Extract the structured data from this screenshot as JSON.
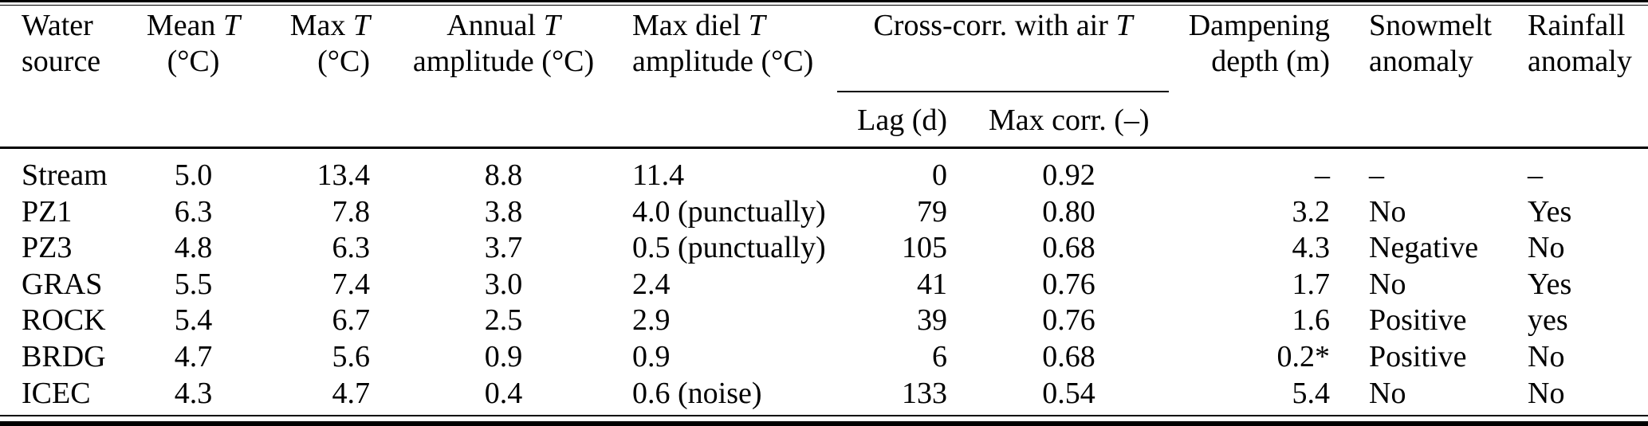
{
  "table": {
    "header": {
      "water": {
        "line1": "Water",
        "line2": "source"
      },
      "mean_t": {
        "pre": "Mean ",
        "t": "T",
        "unit": "(°C)"
      },
      "max_t": {
        "pre": "Max ",
        "t": "T",
        "unit": "(°C)"
      },
      "annual": {
        "pre": "Annual ",
        "t": "T",
        "unit": "amplitude (°C)"
      },
      "max_diel": {
        "pre": "Max diel ",
        "t": "T",
        "unit": "amplitude (°C)"
      },
      "crosscorr": {
        "pre": "Cross-corr. with air ",
        "t": "T"
      },
      "lag": "Lag (d)",
      "max_corr": "Max corr. (–)",
      "dampening": {
        "line1": "Dampening",
        "line2": "depth (m)"
      },
      "snowmelt": {
        "line1": "Snowmelt",
        "line2": "anomaly"
      },
      "rainfall": {
        "line1": "Rainfall",
        "line2": "anomaly"
      }
    },
    "rows": [
      {
        "source": "Stream",
        "mean_t": "5.0",
        "max_t": "13.4",
        "annual": "8.8",
        "max_diel": "11.4",
        "lag": "0",
        "max_corr": "0.92",
        "dampening": "–",
        "snowmelt": "–",
        "rainfall": "–"
      },
      {
        "source": "PZ1",
        "mean_t": "6.3",
        "max_t": "7.8",
        "annual": "3.8",
        "max_diel": "4.0 (punctually)",
        "lag": "79",
        "max_corr": "0.80",
        "dampening": "3.2",
        "snowmelt": "No",
        "rainfall": "Yes"
      },
      {
        "source": "PZ3",
        "mean_t": "4.8",
        "max_t": "6.3",
        "annual": "3.7",
        "max_diel": "0.5 (punctually)",
        "lag": "105",
        "max_corr": "0.68",
        "dampening": "4.3",
        "snowmelt": "Negative",
        "rainfall": "No"
      },
      {
        "source": "GRAS",
        "mean_t": "5.5",
        "max_t": "7.4",
        "annual": "3.0",
        "max_diel": "2.4",
        "lag": "41",
        "max_corr": "0.76",
        "dampening": "1.7",
        "snowmelt": "No",
        "rainfall": "Yes"
      },
      {
        "source": "ROCK",
        "mean_t": "5.4",
        "max_t": "6.7",
        "annual": "2.5",
        "max_diel": "2.9",
        "lag": "39",
        "max_corr": "0.76",
        "dampening": "1.6",
        "snowmelt": "Positive",
        "rainfall": "yes"
      },
      {
        "source": "BRDG",
        "mean_t": "4.7",
        "max_t": "5.6",
        "annual": "0.9",
        "max_diel": "0.9",
        "lag": "6",
        "max_corr": "0.68",
        "dampening": "0.2*",
        "snowmelt": "Positive",
        "rainfall": "No"
      },
      {
        "source": "ICEC",
        "mean_t": "4.3",
        "max_t": "4.7",
        "annual": "0.4",
        "max_diel": "0.6 (noise)",
        "lag": "133",
        "max_corr": "0.54",
        "dampening": "5.4",
        "snowmelt": "No",
        "rainfall": "No"
      }
    ],
    "colors": {
      "text": "#000000",
      "background": "#ffffff",
      "rule": "#000000"
    }
  }
}
